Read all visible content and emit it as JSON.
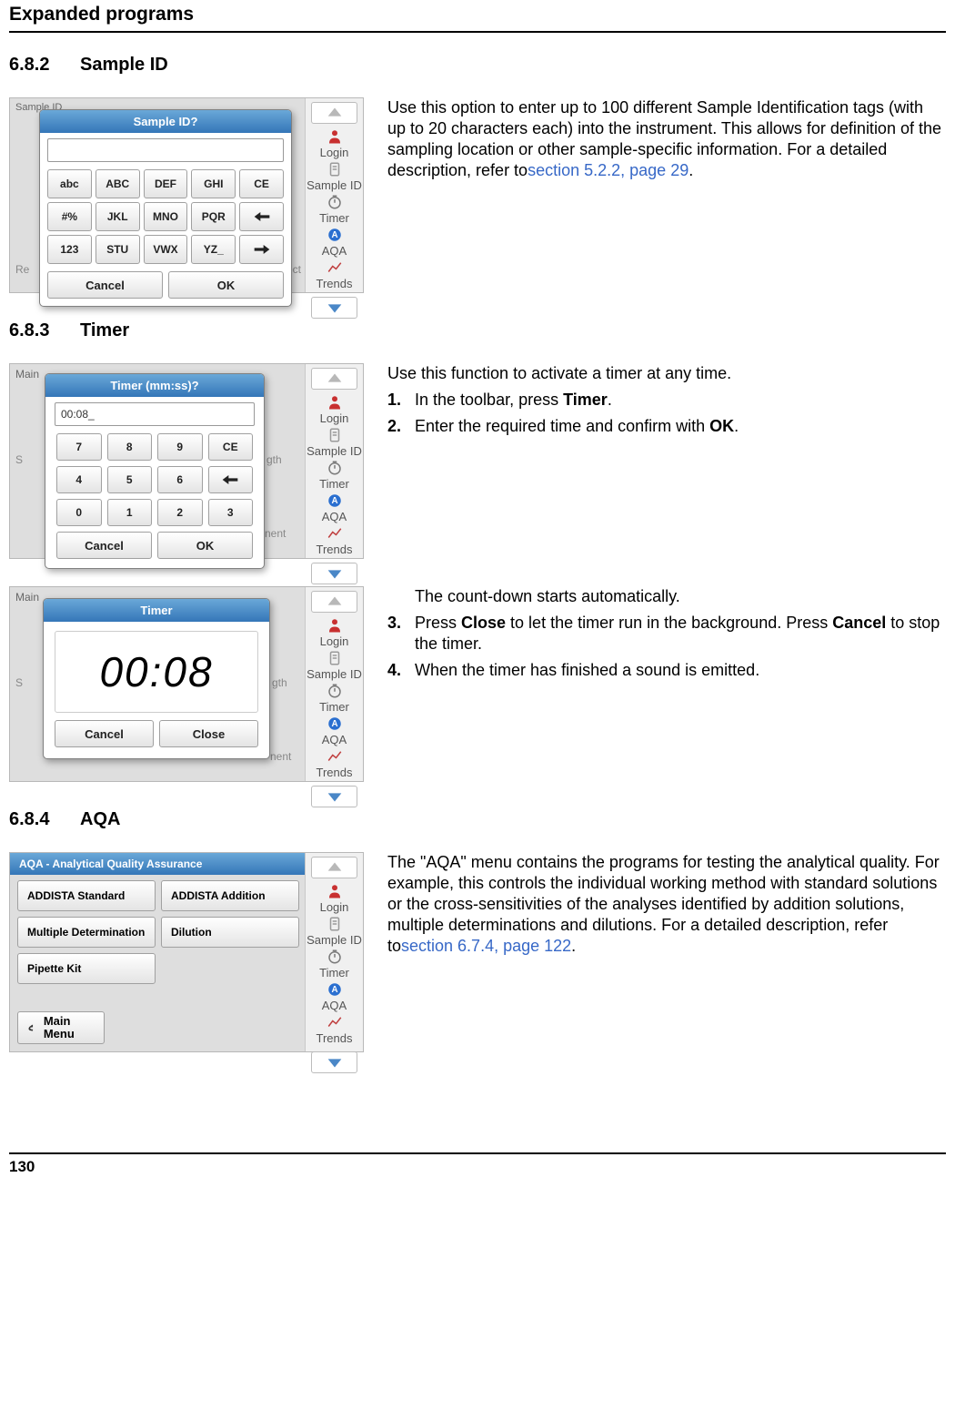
{
  "page": {
    "header": "Expanded programs",
    "footer_page": "130"
  },
  "sections": {
    "s682": {
      "num": "6.8.2",
      "title": "Sample ID"
    },
    "s683": {
      "num": "6.8.3",
      "title": "Timer"
    },
    "s684": {
      "num": "6.8.4",
      "title": "AQA"
    }
  },
  "text": {
    "sample_id_para_a": "Use this option to enter up to 100 different Sample Identification tags (with up to 20 characters each) into the instrument. This allows for  definition of the sampling location or other sample-specific information. For a detailed description, refer to",
    "sample_id_link": "section 5.2.2, page 29",
    "timer_intro": "Use this function to activate a timer at any time.",
    "timer_step1_a": "In the toolbar, press ",
    "timer_step1_b": "Timer",
    "timer_step2_a": "Enter the required time and confirm with ",
    "timer_step2_b": "OK",
    "countdown": "The count-down starts automatically.",
    "timer_step3_a": "Press ",
    "timer_step3_b": "Close",
    "timer_step3_c": " to let the timer run in the background. Press ",
    "timer_step3_d": "Cancel",
    "timer_step3_e": " to stop the timer.",
    "timer_step4": "When the timer has finished a sound is emitted.",
    "aqa_para_a": "The \"AQA\" menu contains the programs for testing the analytical quality. For example, this controls the individual working method with standard solutions or the cross-sensitivities of the analyses identified by addition solutions, multiple determinations and dilutions. For a detailed description, refer to",
    "aqa_link": "section 6.7.4, page 122"
  },
  "toolbar_items": [
    {
      "label": "Login",
      "color": "#c83030",
      "glyph": "login"
    },
    {
      "label": "Sample ID",
      "color": "#9a9a9a",
      "glyph": "sample"
    },
    {
      "label": "Timer",
      "color": "#7a7a7a",
      "glyph": "timer"
    },
    {
      "label": "AQA",
      "color": "#2a6fd0",
      "glyph": "aqa"
    },
    {
      "label": "Trends",
      "color": "#c04040",
      "glyph": "trends"
    }
  ],
  "screenshots": {
    "sample_id": {
      "corner": "Sample ID",
      "dialog_title": "Sample ID?",
      "input_value": "",
      "keys": [
        "abc",
        "ABC",
        "DEF",
        "GHI",
        "CE",
        "#%",
        "JKL",
        "MNO",
        "PQR",
        "←",
        "123",
        "STU",
        "VWX",
        "YZ_",
        "→"
      ],
      "cancel": "Cancel",
      "ok": "OK",
      "bg_left": "Re",
      "bg_right": "ect"
    },
    "timer_in": {
      "corner": "Main",
      "dialog_title": "Timer (mm:ss)?",
      "input_value": "00:08_",
      "keys": [
        "7",
        "8",
        "9",
        "CE",
        "4",
        "5",
        "6",
        "←",
        "0",
        "1",
        "2",
        "3"
      ],
      "cancel": "Cancel",
      "ok": "OK",
      "bg_right1": "gth",
      "bg_right2": "nent",
      "bg_left": "S"
    },
    "timer_run": {
      "corner": "Main",
      "dialog_title": "Timer",
      "display": "00:08",
      "cancel": "Cancel",
      "close": "Close",
      "bg_right1": "gth",
      "bg_right2": "nent",
      "bg_left": "S"
    },
    "aqa": {
      "title": "AQA - Analytical Quality Assurance",
      "buttons": [
        "ADDISTA Standard",
        "ADDISTA Addition",
        "Multiple Determination",
        "Dilution",
        "Pipette Kit"
      ],
      "main_menu": "Main Menu"
    }
  },
  "style": {
    "titlebar_grad_top": "#6aa8d8",
    "titlebar_grad_bot": "#3476b8",
    "link_color": "#3768c7"
  }
}
